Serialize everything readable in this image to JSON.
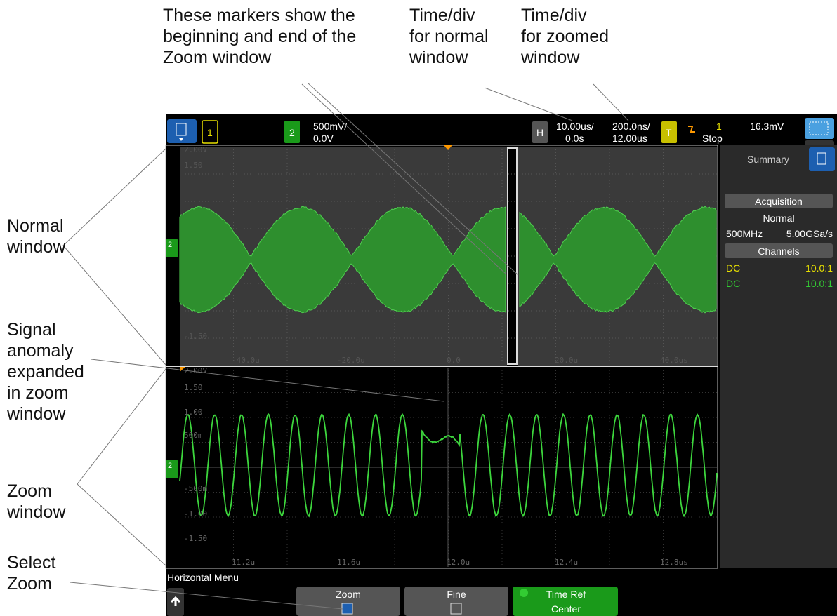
{
  "annotations": {
    "markers": [
      "These markers show the",
      "beginning and end of the",
      "Zoom window"
    ],
    "normal_timediv": [
      "Time/div",
      "for normal",
      "window"
    ],
    "zoomed_timediv": [
      "Time/div",
      "for zoomed",
      "window"
    ],
    "normal_window": [
      "Normal",
      "window"
    ],
    "anomaly": [
      "Signal",
      "anomaly",
      "expanded",
      "in zoom",
      "window"
    ],
    "zoom_window": [
      "Zoom",
      "window"
    ],
    "select_zoom": [
      "Select",
      "Zoom"
    ]
  },
  "top_bar": {
    "ch1": "1",
    "ch2": "2",
    "ch2_scale": "500mV/",
    "ch2_offset": "0.0V",
    "h": "H",
    "normal_timediv": "10.00us/",
    "normal_delay": "0.0s",
    "zoom_timediv": "200.0ns/",
    "zoom_delay": "12.00us",
    "t": "T",
    "trigger_source": "1",
    "trigger_level": "16.3mV",
    "run_state": "Stop"
  },
  "normal_window": {
    "y_labels": [
      "2.00V",
      "1.50",
      "-1.50"
    ],
    "x_labels": [
      "-40.0u",
      "-20.0u",
      "0.0",
      "20.0u",
      "40.0us"
    ]
  },
  "zoom_window": {
    "y_labels": [
      "2.00V",
      "1.50",
      "1.00",
      "500m",
      "-500m",
      "-1.00",
      "-1.50"
    ],
    "x_labels": [
      "11.2u",
      "11.6u",
      "12.0u",
      "12.4u",
      "12.8us"
    ]
  },
  "channel_marker": "2",
  "side_panel": {
    "tab": "Summary",
    "acquisition": "Acquisition",
    "mode": "Normal",
    "bandwidth": "500MHz",
    "sample_rate": "5.00GSa/s",
    "channels": "Channels",
    "rows": [
      [
        "DC",
        "10.0:1"
      ],
      [
        "DC",
        "10.0:1"
      ]
    ]
  },
  "menu": {
    "title": "Horizontal Menu",
    "zoom": "Zoom",
    "fine": "Fine",
    "time_ref": [
      "Time Ref",
      "Center"
    ]
  }
}
